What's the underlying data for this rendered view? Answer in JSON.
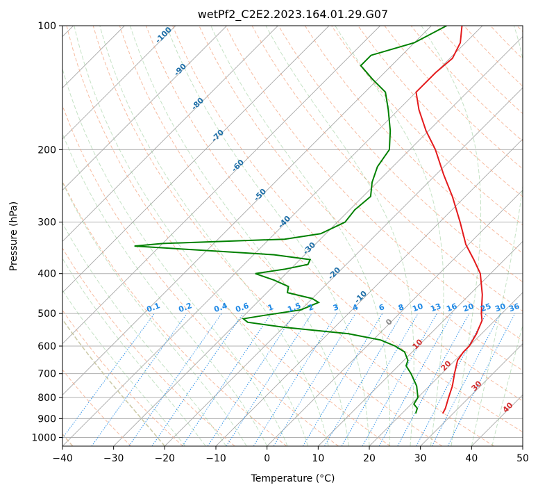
{
  "chart_data": {
    "type": "line",
    "title": "wetPf2_C2E2.2023.164.01.29.G07",
    "xlabel": "Temperature (°C)",
    "ylabel": "Pressure (hPa)",
    "xlim": [
      -40,
      50
    ],
    "ylim": [
      1050,
      100
    ],
    "y_scale": "log",
    "x_ticks": [
      "−40",
      "−30",
      "−20",
      "−10",
      "0",
      "10",
      "20",
      "30",
      "40",
      "50"
    ],
    "y_ticks": [
      "100",
      "200",
      "300",
      "400",
      "500",
      "600",
      "700",
      "800",
      "900",
      "1000"
    ],
    "grid": true,
    "skew": true,
    "series": [
      {
        "color": "#e41a1c",
        "points": [
          {
            "p": 875,
            "t": 28.0
          },
          {
            "p": 850,
            "t": 27.5
          },
          {
            "p": 800,
            "t": 26.0
          },
          {
            "p": 750,
            "t": 24.5
          },
          {
            "p": 700,
            "t": 22.5
          },
          {
            "p": 650,
            "t": 20.5
          },
          {
            "p": 620,
            "t": 20.0
          },
          {
            "p": 600,
            "t": 20.0
          },
          {
            "p": 560,
            "t": 19.0
          },
          {
            "p": 520,
            "t": 17.5
          },
          {
            "p": 500,
            "t": 16.0
          },
          {
            "p": 450,
            "t": 12.5
          },
          {
            "p": 400,
            "t": 8.0
          },
          {
            "p": 370,
            "t": 4.0
          },
          {
            "p": 340,
            "t": -0.5
          },
          {
            "p": 300,
            "t": -6.0
          },
          {
            "p": 260,
            "t": -12.5
          },
          {
            "p": 230,
            "t": -18.5
          },
          {
            "p": 200,
            "t": -25.0
          },
          {
            "p": 180,
            "t": -30.5
          },
          {
            "p": 160,
            "t": -36.0
          },
          {
            "p": 145,
            "t": -40.0
          },
          {
            "p": 130,
            "t": -40.0
          },
          {
            "p": 120,
            "t": -39.5
          },
          {
            "p": 110,
            "t": -41.0
          },
          {
            "p": 100,
            "t": -44.0
          }
        ]
      },
      {
        "color": "#008000",
        "points": [
          {
            "p": 875,
            "t": 22.7
          },
          {
            "p": 850,
            "t": 22.0
          },
          {
            "p": 830,
            "t": 20.5
          },
          {
            "p": 800,
            "t": 20.0
          },
          {
            "p": 750,
            "t": 17.5
          },
          {
            "p": 700,
            "t": 14.0
          },
          {
            "p": 670,
            "t": 11.5
          },
          {
            "p": 650,
            "t": 10.8
          },
          {
            "p": 620,
            "t": 8.5
          },
          {
            "p": 600,
            "t": 5.5
          },
          {
            "p": 580,
            "t": 1.5
          },
          {
            "p": 560,
            "t": -6.0
          },
          {
            "p": 540,
            "t": -20.0
          },
          {
            "p": 525,
            "t": -28.0
          },
          {
            "p": 515,
            "t": -29.5
          },
          {
            "p": 505,
            "t": -26.0
          },
          {
            "p": 490,
            "t": -20.0
          },
          {
            "p": 470,
            "t": -18.0
          },
          {
            "p": 460,
            "t": -20.0
          },
          {
            "p": 445,
            "t": -26.0
          },
          {
            "p": 430,
            "t": -27.0
          },
          {
            "p": 415,
            "t": -31.0
          },
          {
            "p": 400,
            "t": -36.0
          },
          {
            "p": 390,
            "t": -31.0
          },
          {
            "p": 380,
            "t": -27.5
          },
          {
            "p": 370,
            "t": -28.0
          },
          {
            "p": 360,
            "t": -36.0
          },
          {
            "p": 350,
            "t": -53.0
          },
          {
            "p": 343,
            "t": -65.0
          },
          {
            "p": 338,
            "t": -60.0
          },
          {
            "p": 330,
            "t": -37.0
          },
          {
            "p": 320,
            "t": -31.0
          },
          {
            "p": 300,
            "t": -28.5
          },
          {
            "p": 280,
            "t": -29.0
          },
          {
            "p": 260,
            "t": -28.5
          },
          {
            "p": 240,
            "t": -31.0
          },
          {
            "p": 220,
            "t": -33.0
          },
          {
            "p": 200,
            "t": -34.0
          },
          {
            "p": 180,
            "t": -37.5
          },
          {
            "p": 160,
            "t": -42.0
          },
          {
            "p": 145,
            "t": -46.0
          },
          {
            "p": 135,
            "t": -51.0
          },
          {
            "p": 125,
            "t": -56.0
          },
          {
            "p": 118,
            "t": -56.0
          },
          {
            "p": 110,
            "t": -50.0
          },
          {
            "p": 100,
            "t": -47.0
          }
        ]
      }
    ],
    "dry_adiabat_labels": [
      "-100",
      "-90",
      "-80",
      "-70",
      "-60",
      "-50",
      "-40",
      "-30",
      "-20",
      "-10",
      "0"
    ],
    "moist_adiabat_labels": [
      "10",
      "20",
      "30",
      "40"
    ],
    "mixing_ratio_labels": [
      "0.1",
      "0.2",
      "0.4",
      "0.6",
      "1",
      "1.5",
      "2",
      "3",
      "4",
      "6",
      "8",
      "10",
      "13",
      "16",
      "20",
      "25",
      "30",
      "36"
    ]
  }
}
